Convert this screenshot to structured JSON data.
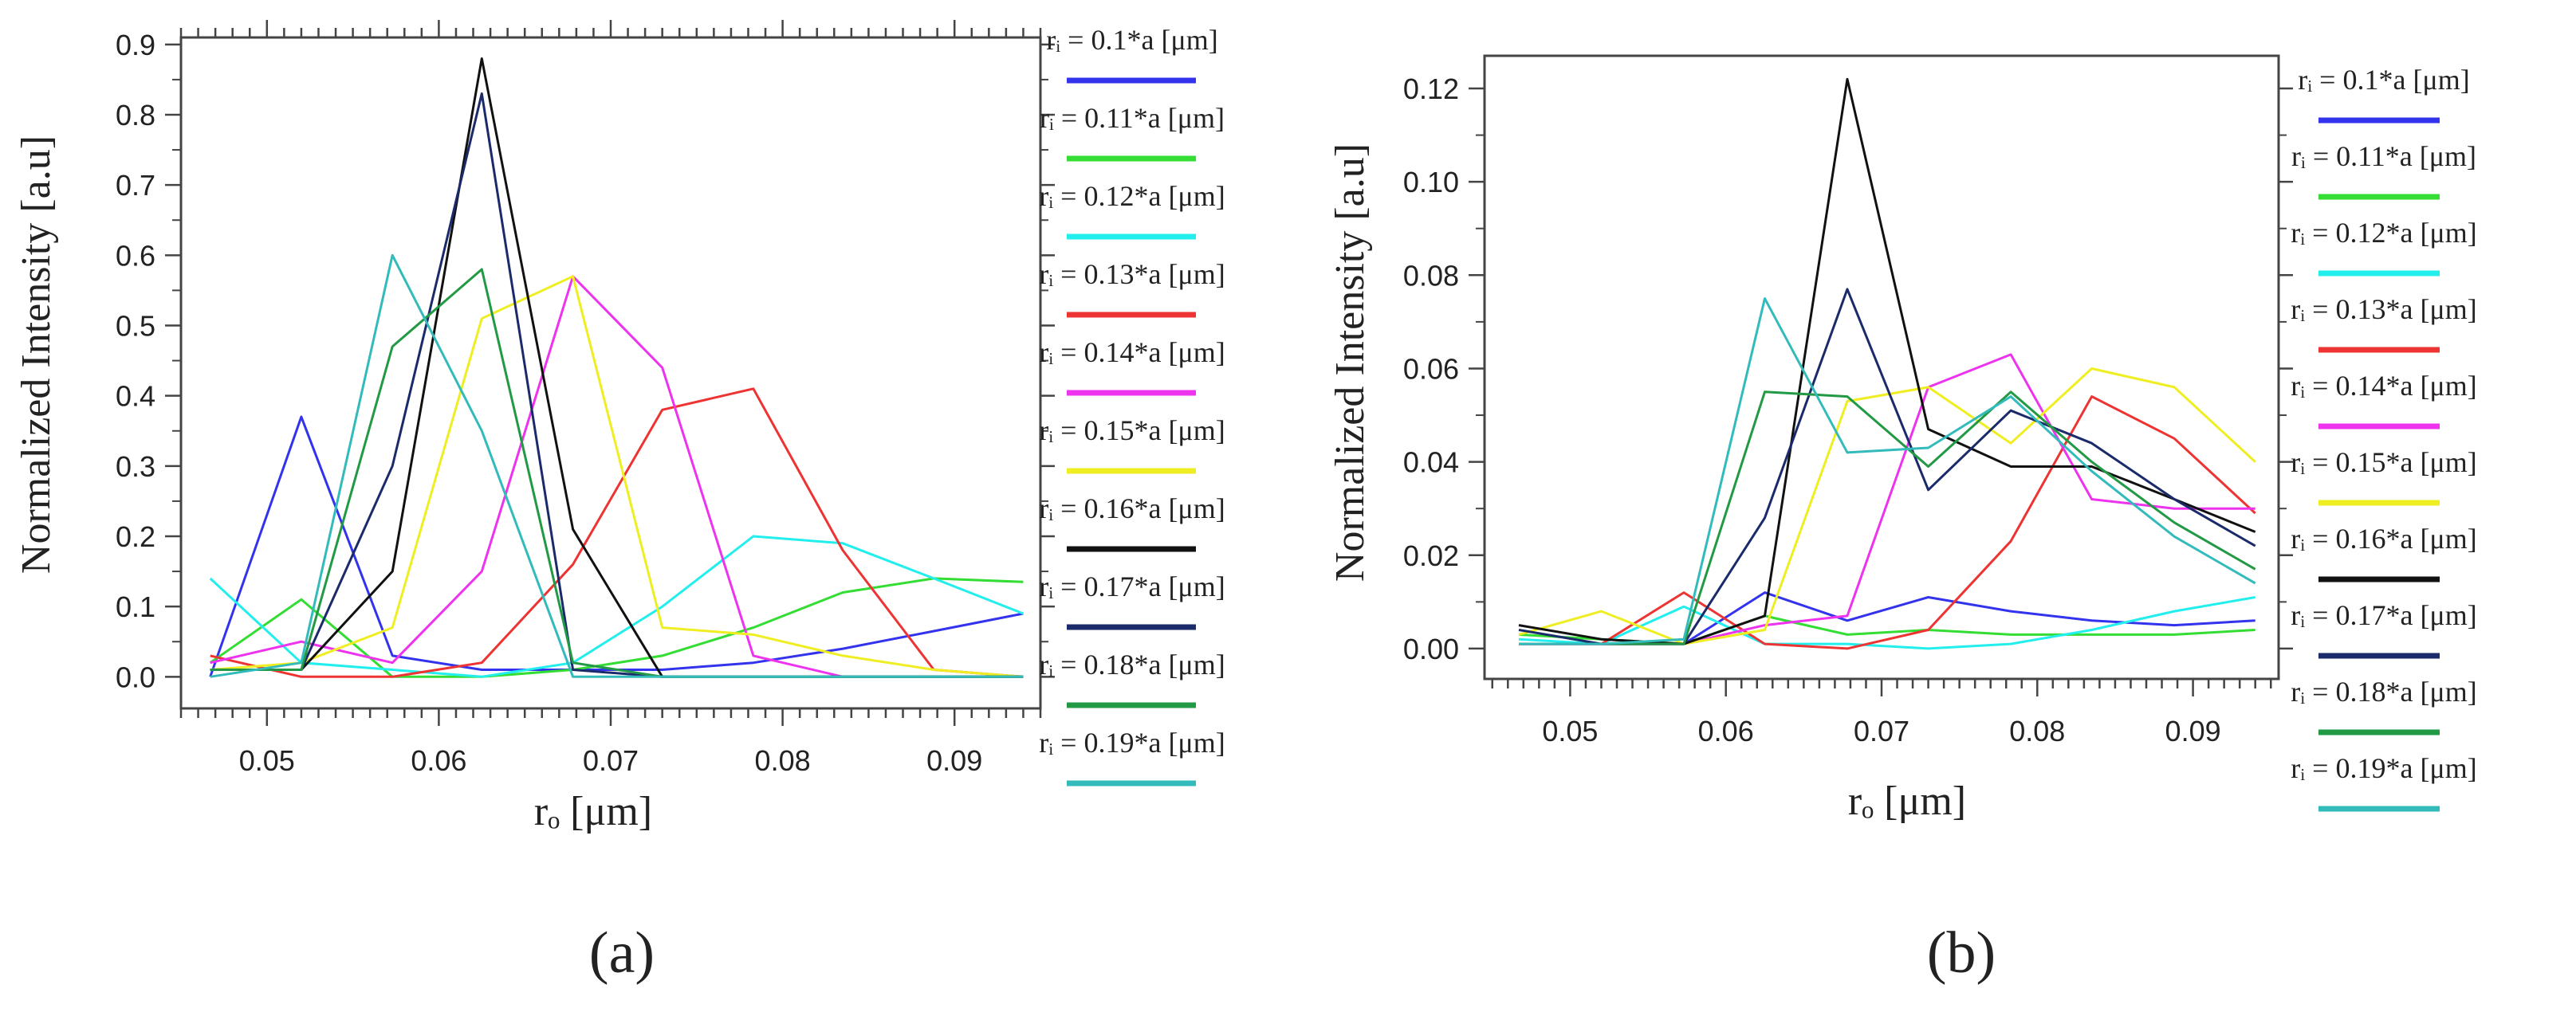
{
  "chart_data": [
    {
      "type": "line",
      "panel_label": "(a)",
      "xlabel": "rₒ [μm]",
      "ylabel": "Normalized Intensity [a.u]",
      "xlim": [
        0.045,
        0.095
      ],
      "ylim": [
        -0.045,
        0.91
      ],
      "xticks": [
        0.05,
        0.06,
        0.07,
        0.08,
        0.09
      ],
      "xtick_labels": [
        "0.05",
        "0.06",
        "0.07",
        "0.08",
        "0.09"
      ],
      "yticks": [
        0,
        0.1,
        0.2,
        0.3,
        0.4,
        0.5,
        0.6,
        0.7,
        0.8,
        0.9
      ],
      "ytick_labels": [
        "0.0",
        "0.1",
        "0.2",
        "0.3",
        "0.4",
        "0.5",
        "0.6",
        "0.7",
        "0.8",
        "0.9"
      ],
      "x": [
        0.0467,
        0.052,
        0.0573,
        0.0625,
        0.0678,
        0.073,
        0.0783,
        0.0835,
        0.0888,
        0.094
      ],
      "series": [
        {
          "name": "rᵢ = 0.1*a [μm]",
          "color": "#3333ee",
          "values": [
            0.0,
            0.37,
            0.03,
            0.01,
            0.01,
            0.01,
            0.02,
            0.04,
            0.065,
            0.09
          ]
        },
        {
          "name": "rᵢ = 0.11*a [μm]",
          "color": "#33dd33",
          "values": [
            0.02,
            0.11,
            0.0,
            0.0,
            0.01,
            0.03,
            0.07,
            0.12,
            0.14,
            0.135
          ]
        },
        {
          "name": "rᵢ = 0.12*a [μm]",
          "color": "#22eeee",
          "values": [
            0.14,
            0.02,
            0.01,
            0.0,
            0.02,
            0.1,
            0.2,
            0.19,
            0.14,
            0.09
          ]
        },
        {
          "name": "rᵢ = 0.13*a [μm]",
          "color": "#ee3333",
          "values": [
            0.03,
            0.0,
            0.0,
            0.02,
            0.16,
            0.38,
            0.41,
            0.18,
            0.01,
            0.0
          ]
        },
        {
          "name": "rᵢ = 0.14*a [μm]",
          "color": "#ee33ee",
          "values": [
            0.02,
            0.05,
            0.02,
            0.15,
            0.57,
            0.44,
            0.03,
            0.0,
            0.0,
            0.0
          ]
        },
        {
          "name": "rᵢ = 0.15*a [μm]",
          "color": "#eeee22",
          "values": [
            0.01,
            0.02,
            0.07,
            0.51,
            0.57,
            0.07,
            0.06,
            0.03,
            0.01,
            0.0
          ]
        },
        {
          "name": "rᵢ = 0.16*a [μm]",
          "color": "#111111",
          "values": [
            0.01,
            0.01,
            0.15,
            0.88,
            0.21,
            0.0,
            0.0,
            0.0,
            0.0,
            0.0
          ]
        },
        {
          "name": "rᵢ = 0.17*a [μm]",
          "color": "#1a2a6a",
          "values": [
            0.01,
            0.01,
            0.3,
            0.83,
            0.01,
            0.0,
            0.0,
            0.0,
            0.0,
            0.0
          ]
        },
        {
          "name": "rᵢ = 0.18*a [μm]",
          "color": "#229944",
          "values": [
            0.01,
            0.01,
            0.47,
            0.58,
            0.02,
            0.0,
            0.0,
            0.0,
            0.0,
            0.0
          ]
        },
        {
          "name": "rᵢ = 0.19*a [μm]",
          "color": "#33bbbb",
          "values": [
            0.0,
            0.02,
            0.6,
            0.35,
            0.0,
            0.0,
            0.0,
            0.0,
            0.0,
            0.0
          ]
        }
      ]
    },
    {
      "type": "line",
      "panel_label": "(b)",
      "xlabel": "rₒ [μm]",
      "ylabel": "Normalized Intensity [a.u]",
      "xlim": [
        0.0445,
        0.0955
      ],
      "ylim": [
        -0.0065,
        0.127
      ],
      "xticks": [
        0.05,
        0.06,
        0.07,
        0.08,
        0.09
      ],
      "xtick_labels": [
        "0.05",
        "0.06",
        "0.07",
        "0.08",
        "0.09"
      ],
      "yticks": [
        0,
        0.02,
        0.04,
        0.06,
        0.08,
        0.1,
        0.12
      ],
      "ytick_labels": [
        "0.00",
        "0.02",
        "0.04",
        "0.06",
        "0.08",
        "0.10",
        "0.12"
      ],
      "x": [
        0.0467,
        0.052,
        0.0573,
        0.0625,
        0.0678,
        0.073,
        0.0783,
        0.0835,
        0.0888,
        0.094
      ],
      "series": [
        {
          "name": "rᵢ = 0.1*a [μm]",
          "color": "#3333ee",
          "values": [
            0.001,
            0.001,
            0.001,
            0.012,
            0.006,
            0.011,
            0.008,
            0.006,
            0.005,
            0.006
          ]
        },
        {
          "name": "rᵢ = 0.11*a [μm]",
          "color": "#33dd33",
          "values": [
            0.003,
            0.002,
            0.001,
            0.007,
            0.003,
            0.004,
            0.003,
            0.003,
            0.003,
            0.004
          ]
        },
        {
          "name": "rᵢ = 0.12*a [μm]",
          "color": "#22eeee",
          "values": [
            0.002,
            0.001,
            0.009,
            0.001,
            0.001,
            0.0,
            0.001,
            0.004,
            0.008,
            0.011
          ]
        },
        {
          "name": "rᵢ = 0.13*a [μm]",
          "color": "#ee3333",
          "values": [
            0.001,
            0.001,
            0.012,
            0.001,
            0.0,
            0.004,
            0.023,
            0.054,
            0.045,
            0.029
          ]
        },
        {
          "name": "rᵢ = 0.14*a [μm]",
          "color": "#ee33ee",
          "values": [
            0.001,
            0.001,
            0.001,
            0.005,
            0.007,
            0.056,
            0.063,
            0.032,
            0.03,
            0.03
          ]
        },
        {
          "name": "rᵢ = 0.15*a [μm]",
          "color": "#eeee22",
          "values": [
            0.003,
            0.008,
            0.001,
            0.004,
            0.053,
            0.056,
            0.044,
            0.06,
            0.056,
            0.04
          ]
        },
        {
          "name": "rᵢ = 0.16*a [μm]",
          "color": "#111111",
          "values": [
            0.005,
            0.002,
            0.001,
            0.007,
            0.122,
            0.047,
            0.039,
            0.039,
            0.032,
            0.025
          ]
        },
        {
          "name": "rᵢ = 0.17*a [μm]",
          "color": "#1a2a6a",
          "values": [
            0.004,
            0.001,
            0.001,
            0.028,
            0.077,
            0.034,
            0.051,
            0.044,
            0.032,
            0.022
          ]
        },
        {
          "name": "rᵢ = 0.18*a [μm]",
          "color": "#229944",
          "values": [
            0.001,
            0.001,
            0.001,
            0.055,
            0.054,
            0.039,
            0.055,
            0.04,
            0.027,
            0.017
          ]
        },
        {
          "name": "rᵢ = 0.19*a [μm]",
          "color": "#33bbbb",
          "values": [
            0.001,
            0.001,
            0.002,
            0.075,
            0.042,
            0.043,
            0.054,
            0.038,
            0.024,
            0.014
          ]
        }
      ]
    }
  ]
}
